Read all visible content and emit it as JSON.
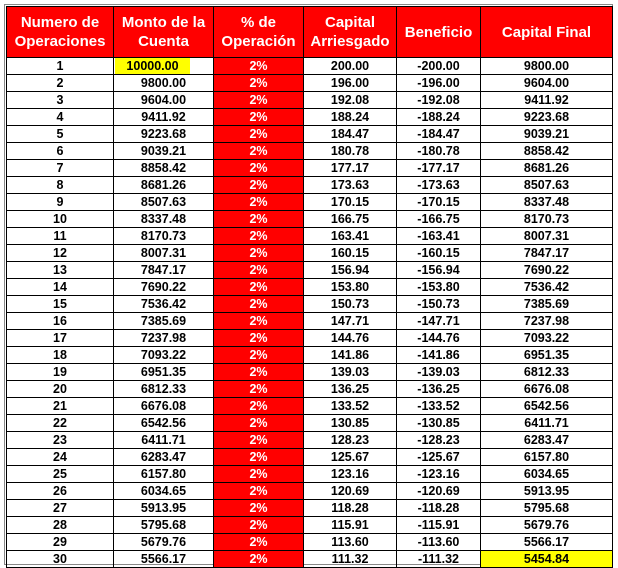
{
  "colors": {
    "header": "#ff0000",
    "highlight": "#ffff00",
    "percent_column": "#ff0000"
  },
  "headers": [
    "Numero de Operaciones",
    "Monto de la Cuenta",
    "% de Operación",
    "Capital Arriesgado",
    "Beneficio",
    "Capital Final"
  ],
  "rows": [
    [
      "1",
      "10000.00",
      "2%",
      "200.00",
      "-200.00",
      "9800.00"
    ],
    [
      "2",
      "9800.00",
      "2%",
      "196.00",
      "-196.00",
      "9604.00"
    ],
    [
      "3",
      "9604.00",
      "2%",
      "192.08",
      "-192.08",
      "9411.92"
    ],
    [
      "4",
      "9411.92",
      "2%",
      "188.24",
      "-188.24",
      "9223.68"
    ],
    [
      "5",
      "9223.68",
      "2%",
      "184.47",
      "-184.47",
      "9039.21"
    ],
    [
      "6",
      "9039.21",
      "2%",
      "180.78",
      "-180.78",
      "8858.42"
    ],
    [
      "7",
      "8858.42",
      "2%",
      "177.17",
      "-177.17",
      "8681.26"
    ],
    [
      "8",
      "8681.26",
      "2%",
      "173.63",
      "-173.63",
      "8507.63"
    ],
    [
      "9",
      "8507.63",
      "2%",
      "170.15",
      "-170.15",
      "8337.48"
    ],
    [
      "10",
      "8337.48",
      "2%",
      "166.75",
      "-166.75",
      "8170.73"
    ],
    [
      "11",
      "8170.73",
      "2%",
      "163.41",
      "-163.41",
      "8007.31"
    ],
    [
      "12",
      "8007.31",
      "2%",
      "160.15",
      "-160.15",
      "7847.17"
    ],
    [
      "13",
      "7847.17",
      "2%",
      "156.94",
      "-156.94",
      "7690.22"
    ],
    [
      "14",
      "7690.22",
      "2%",
      "153.80",
      "-153.80",
      "7536.42"
    ],
    [
      "15",
      "7536.42",
      "2%",
      "150.73",
      "-150.73",
      "7385.69"
    ],
    [
      "16",
      "7385.69",
      "2%",
      "147.71",
      "-147.71",
      "7237.98"
    ],
    [
      "17",
      "7237.98",
      "2%",
      "144.76",
      "-144.76",
      "7093.22"
    ],
    [
      "18",
      "7093.22",
      "2%",
      "141.86",
      "-141.86",
      "6951.35"
    ],
    [
      "19",
      "6951.35",
      "2%",
      "139.03",
      "-139.03",
      "6812.33"
    ],
    [
      "20",
      "6812.33",
      "2%",
      "136.25",
      "-136.25",
      "6676.08"
    ],
    [
      "21",
      "6676.08",
      "2%",
      "133.52",
      "-133.52",
      "6542.56"
    ],
    [
      "22",
      "6542.56",
      "2%",
      "130.85",
      "-130.85",
      "6411.71"
    ],
    [
      "23",
      "6411.71",
      "2%",
      "128.23",
      "-128.23",
      "6283.47"
    ],
    [
      "24",
      "6283.47",
      "2%",
      "125.67",
      "-125.67",
      "6157.80"
    ],
    [
      "25",
      "6157.80",
      "2%",
      "123.16",
      "-123.16",
      "6034.65"
    ],
    [
      "26",
      "6034.65",
      "2%",
      "120.69",
      "-120.69",
      "5913.95"
    ],
    [
      "27",
      "5913.95",
      "2%",
      "118.28",
      "-118.28",
      "5795.68"
    ],
    [
      "28",
      "5795.68",
      "2%",
      "115.91",
      "-115.91",
      "5679.76"
    ],
    [
      "29",
      "5679.76",
      "2%",
      "113.60",
      "-113.60",
      "5566.17"
    ],
    [
      "30",
      "5566.17",
      "2%",
      "111.32",
      "-111.32",
      "5454.84"
    ]
  ]
}
